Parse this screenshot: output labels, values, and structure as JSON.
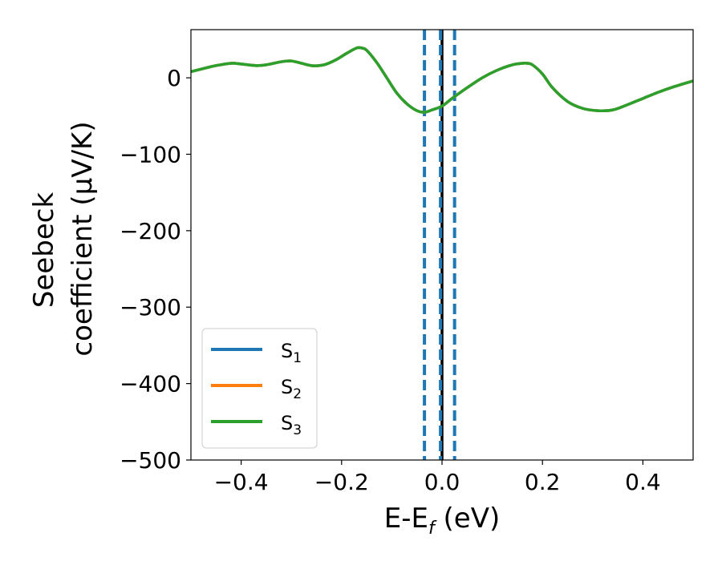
{
  "chart_data": {
    "type": "line",
    "xlabel": "E-E",
    "xlabel_subscript": "f",
    "xlabel_unit": " (eV)",
    "ylabel_line1": "Seebeck",
    "ylabel_line2": "coefficient  (μV/K)",
    "xlim": [
      -0.5,
      0.5
    ],
    "ylim": [
      -500,
      63
    ],
    "xticks": [
      -0.4,
      -0.2,
      0.0,
      0.2,
      0.4
    ],
    "xtick_labels": [
      "−0.4",
      "−0.2",
      "0.0",
      "0.2",
      "0.4"
    ],
    "yticks": [
      0,
      -100,
      -200,
      -300,
      -400,
      -500
    ],
    "ytick_labels": [
      "0",
      "−100",
      "−200",
      "−300",
      "−400",
      "−500"
    ],
    "grid": false,
    "legend_position": "lower-left",
    "series": [
      {
        "name": "S",
        "subscript": "1",
        "color": "#1f77b4",
        "x": [
          -0.5,
          -0.47,
          -0.45,
          -0.42,
          -0.4,
          -0.37,
          -0.35,
          -0.32,
          -0.3,
          -0.28,
          -0.26,
          -0.245,
          -0.23,
          -0.21,
          -0.19,
          -0.17,
          -0.16,
          -0.15,
          -0.13,
          -0.11,
          -0.09,
          -0.07,
          -0.05,
          -0.035,
          -0.02,
          0.0,
          0.02,
          0.05,
          0.08,
          0.11,
          0.14,
          0.16,
          0.17,
          0.18,
          0.2,
          0.22,
          0.25,
          0.28,
          0.31,
          0.34,
          0.37,
          0.4,
          0.43,
          0.46,
          0.5
        ],
        "y": [
          8,
          13,
          16,
          19,
          18,
          16,
          17,
          21,
          22,
          19,
          16,
          16,
          18,
          24,
          32,
          39,
          39,
          36,
          20,
          0,
          -20,
          -34,
          -43,
          -45,
          -42,
          -37,
          -27,
          -13,
          0,
          10,
          17,
          19,
          19,
          17,
          5,
          -13,
          -31,
          -40,
          -43,
          -42,
          -35,
          -27,
          -19,
          -12,
          -4
        ]
      },
      {
        "name": "S",
        "subscript": "2",
        "color": "#ff7f0e",
        "x": [
          -0.5,
          -0.47,
          -0.45,
          -0.42,
          -0.4,
          -0.37,
          -0.35,
          -0.32,
          -0.3,
          -0.28,
          -0.26,
          -0.245,
          -0.23,
          -0.21,
          -0.19,
          -0.17,
          -0.16,
          -0.15,
          -0.13,
          -0.11,
          -0.09,
          -0.07,
          -0.05,
          -0.035,
          -0.02,
          0.0,
          0.02,
          0.05,
          0.08,
          0.11,
          0.14,
          0.16,
          0.17,
          0.18,
          0.2,
          0.22,
          0.25,
          0.28,
          0.31,
          0.34,
          0.37,
          0.4,
          0.43,
          0.46,
          0.5
        ],
        "y": [
          8,
          13,
          16,
          19,
          18,
          16,
          17,
          21,
          22,
          19,
          16,
          16,
          18,
          24,
          32,
          39,
          39,
          36,
          20,
          0,
          -20,
          -34,
          -43,
          -45,
          -42,
          -37,
          -27,
          -13,
          0,
          10,
          17,
          19,
          19,
          17,
          5,
          -13,
          -31,
          -40,
          -43,
          -42,
          -35,
          -27,
          -19,
          -12,
          -4
        ]
      },
      {
        "name": "S",
        "subscript": "3",
        "color": "#2ca02c",
        "x": [
          -0.5,
          -0.47,
          -0.45,
          -0.42,
          -0.4,
          -0.37,
          -0.35,
          -0.32,
          -0.3,
          -0.28,
          -0.26,
          -0.245,
          -0.23,
          -0.21,
          -0.19,
          -0.17,
          -0.16,
          -0.15,
          -0.13,
          -0.11,
          -0.09,
          -0.07,
          -0.05,
          -0.035,
          -0.02,
          0.0,
          0.02,
          0.05,
          0.08,
          0.11,
          0.14,
          0.16,
          0.17,
          0.18,
          0.2,
          0.22,
          0.25,
          0.28,
          0.31,
          0.34,
          0.37,
          0.4,
          0.43,
          0.46,
          0.5
        ],
        "y": [
          8,
          13,
          16,
          19,
          18,
          16,
          17,
          21,
          22,
          19,
          16,
          16,
          18,
          24,
          32,
          39,
          39,
          36,
          20,
          0,
          -20,
          -34,
          -43,
          -45,
          -42,
          -37,
          -27,
          -13,
          0,
          10,
          17,
          19,
          19,
          17,
          5,
          -13,
          -31,
          -40,
          -43,
          -42,
          -35,
          -27,
          -19,
          -12,
          -4
        ]
      }
    ],
    "vertical_lines": [
      {
        "x": 0.0,
        "color": "#000000",
        "style": "solid"
      },
      {
        "x": -0.035,
        "color": "#1f77b4",
        "style": "dashed"
      },
      {
        "x": -0.003,
        "color": "#1f77b4",
        "style": "dashed"
      },
      {
        "x": 0.025,
        "color": "#1f77b4",
        "style": "dashed"
      }
    ]
  }
}
